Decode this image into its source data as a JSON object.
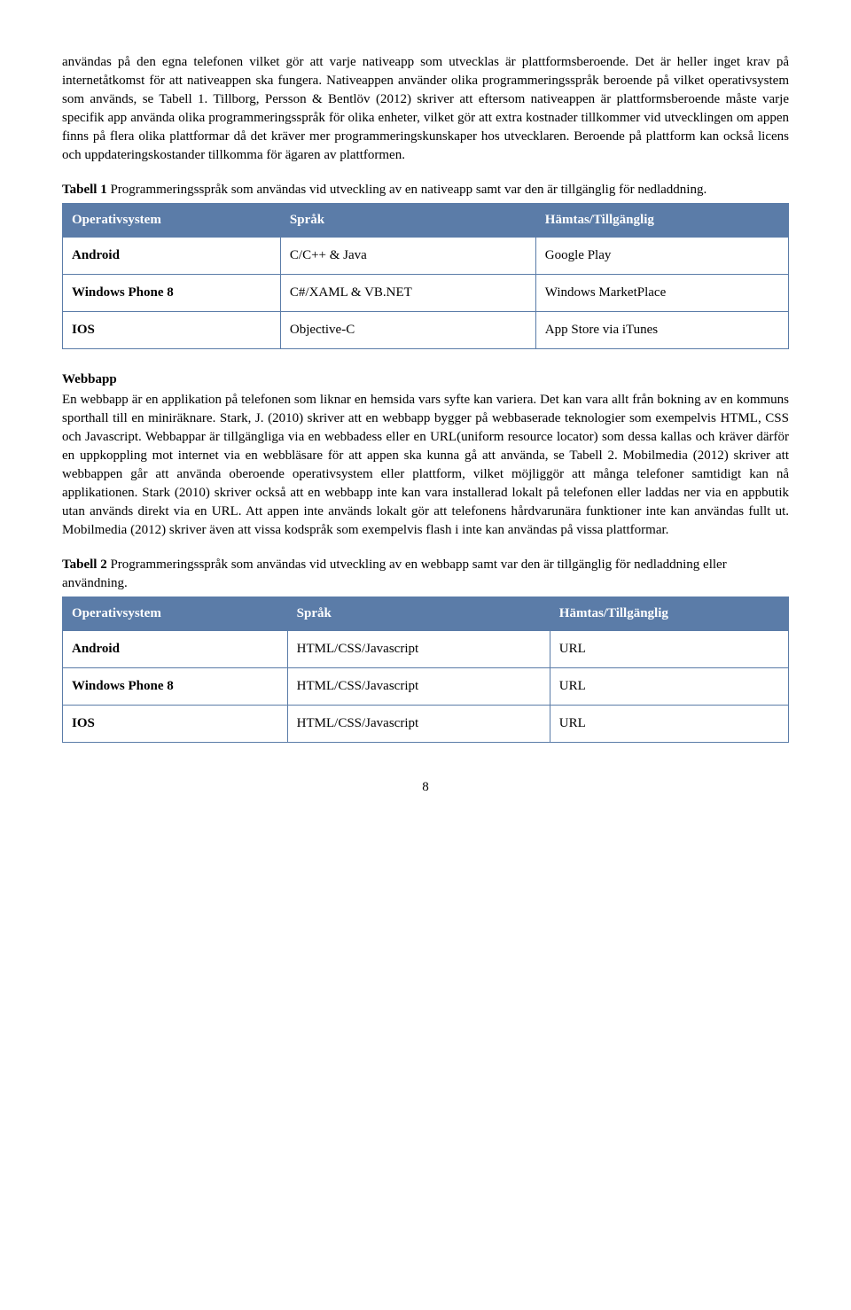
{
  "para1": "användas på den egna telefonen vilket gör att varje nativeapp som utvecklas är plattformsberoende. Det är heller inget krav på internetåtkomst för att nativeappen ska fungera. Nativeappen använder olika programmeringsspråk beroende på vilket operativsystem som används, se Tabell 1. Tillborg, Persson & Bentlöv (2012) skriver att eftersom nativeappen är plattformsberoende måste varje specifik app använda olika programmeringsspråk för olika enheter, vilket gör att extra kostnader tillkommer vid utvecklingen om appen finns på flera olika plattformar då det kräver mer programmeringskunskaper hos utvecklaren. Beroende på plattform kan också licens och uppdateringskostander tillkomma för ägaren av plattformen.",
  "caption1_bold": "Tabell 1",
  "caption1_rest": " Programmeringsspråk som användas vid utveckling av en nativeapp samt var den är tillgänglig för nedladdning.",
  "table1": {
    "headers": [
      "Operativsystem",
      "Språk",
      "Hämtas/Tillgänglig"
    ],
    "rows": [
      [
        "Android",
        "C/C++ & Java",
        "Google Play"
      ],
      [
        "Windows Phone 8",
        "C#/XAML & VB.NET",
        "Windows MarketPlace"
      ],
      [
        "IOS",
        "Objective-C",
        "App Store via iTunes"
      ]
    ]
  },
  "subheading": "Webbapp",
  "para2": "En webbapp är en applikation på telefonen som liknar en hemsida vars syfte kan variera. Det kan vara allt från bokning av en kommuns sporthall till en miniräknare. Stark, J. (2010) skriver att en webbapp bygger på webbaserade teknologier som exempelvis HTML, CSS och Javascript. Webbappar är tillgängliga via en webbadess eller en URL(uniform resource locator) som dessa kallas och kräver därför en uppkoppling mot internet via en webbläsare för att appen ska kunna gå att använda, se Tabell 2. Mobilmedia (2012) skriver att webbappen går att använda oberoende operativsystem eller plattform, vilket möjliggör att många telefoner samtidigt kan nå applikationen. Stark (2010) skriver också att en webbapp inte kan vara installerad lokalt på telefonen eller laddas ner via en appbutik utan används direkt via en URL. Att appen inte används lokalt gör att telefonens hårdvarunära funktioner inte kan användas fullt ut. Mobilmedia (2012) skriver även att vissa kodspråk som exempelvis flash i inte kan användas på vissa plattformar.",
  "caption2_bold": "Tabell 2",
  "caption2_rest": " Programmeringsspråk som användas vid utveckling av en webbapp samt var den är tillgänglig för nedladdning eller användning.",
  "table2": {
    "headers": [
      "Operativsystem",
      "Språk",
      "Hämtas/Tillgänglig"
    ],
    "rows": [
      [
        "Android",
        "HTML/CSS/Javascript",
        "URL"
      ],
      [
        "Windows Phone 8",
        "HTML/CSS/Javascript",
        "URL"
      ],
      [
        "IOS",
        "HTML/CSS/Javascript",
        "URL"
      ]
    ]
  },
  "page_number": "8",
  "colors": {
    "table_header_bg": "#5b7ca8",
    "table_border": "#5b7ca8"
  }
}
